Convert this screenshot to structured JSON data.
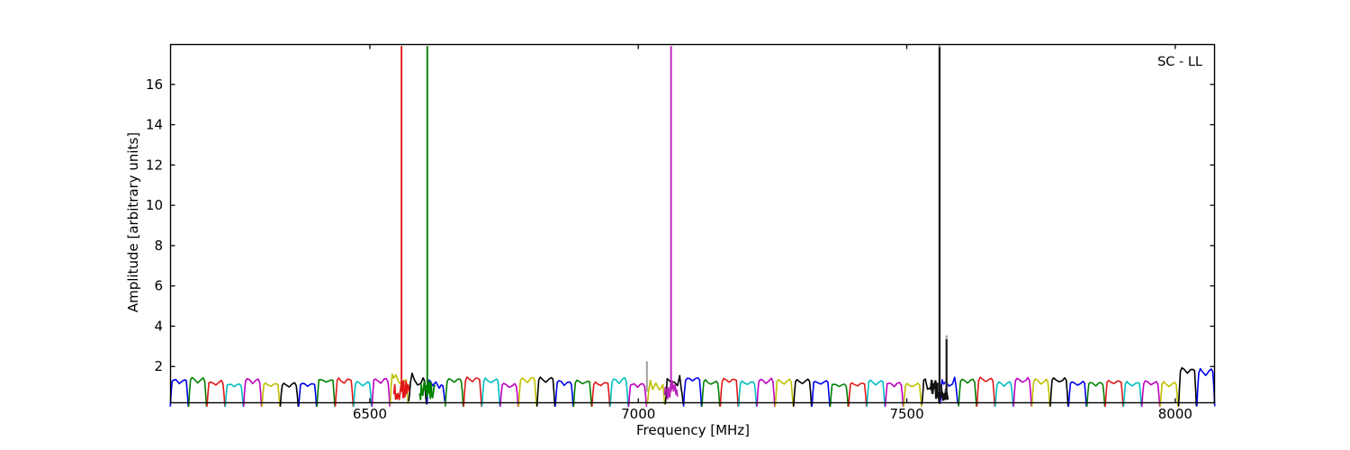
{
  "title": "SC - LL",
  "axes": {
    "xlabel": "Frequency [MHz]",
    "ylabel": "Amplitude [arbitrary units]"
  },
  "chart_data": {
    "type": "line",
    "title": "SC - LL",
    "xlabel": "Frequency [MHz]",
    "ylabel": "Amplitude [arbitrary units]",
    "xlim": [
      6128,
      8074
    ],
    "ylim": [
      0.18,
      18.0
    ],
    "xticks": [
      6500,
      7000,
      7500,
      8000
    ],
    "yticks": [
      2,
      4,
      6,
      8,
      10,
      12,
      14,
      16
    ],
    "grid": false,
    "legend": false,
    "axis_color": "#000000",
    "background": "#ffffff",
    "baseline": {
      "description": "repeating per-subband bandpass humps along the bottom",
      "n_subbands": 57,
      "start_mhz": 6128,
      "subband_width_mhz": 34.14,
      "typical_amplitude_range": [
        1.12,
        1.45
      ],
      "tail_amplitudes": [
        1.9,
        1.85
      ],
      "gap_value": 0.03,
      "mid_dip_factor": 0.86,
      "color_cycle": [
        "#0000ee",
        "#008000",
        "#e01818",
        "#00bfbf",
        "#bf00bf",
        "#bfbf00",
        "#000000"
      ],
      "seed": 7
    },
    "spikes": [
      {
        "freq_mhz": 6559,
        "amplitude": 17.9,
        "color": "#e01818",
        "gray_tip": null,
        "noisy_halfwidth_mhz": 14
      },
      {
        "freq_mhz": 6607,
        "amplitude": 17.9,
        "color": "#008000",
        "gray_tip": null,
        "noisy_halfwidth_mhz": 14
      },
      {
        "freq_mhz": 7016,
        "amplitude": 2.25,
        "color": "#9a9a9a",
        "gray_tip": null,
        "noisy_halfwidth_mhz": 0
      },
      {
        "freq_mhz": 7061,
        "amplitude": 17.9,
        "color": "#bb22bb",
        "gray_tip": null,
        "noisy_halfwidth_mhz": 12
      },
      {
        "freq_mhz": 7561,
        "amplitude": 17.85,
        "color": "#111111",
        "gray_tip": 17.95,
        "noisy_halfwidth_mhz": 16
      },
      {
        "freq_mhz": 7574,
        "amplitude": 3.35,
        "color": "#111111",
        "gray_tip": 3.55,
        "noisy_halfwidth_mhz": 0
      }
    ]
  }
}
